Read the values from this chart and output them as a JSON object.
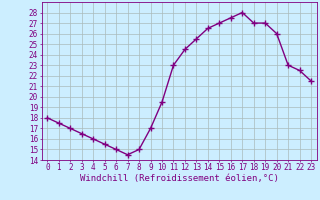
{
  "x": [
    0,
    1,
    2,
    3,
    4,
    5,
    6,
    7,
    8,
    9,
    10,
    11,
    12,
    13,
    14,
    15,
    16,
    17,
    18,
    19,
    20,
    21,
    22,
    23
  ],
  "y": [
    18.0,
    17.5,
    17.0,
    16.5,
    16.0,
    15.5,
    15.0,
    14.5,
    15.0,
    17.0,
    19.5,
    23.0,
    24.5,
    25.5,
    26.5,
    27.0,
    27.5,
    28.0,
    27.0,
    27.0,
    26.0,
    23.0,
    22.5,
    21.5
  ],
  "line_color": "#800080",
  "marker": "+",
  "marker_size": 4,
  "bg_color": "#cceeff",
  "grid_color": "#aabbbb",
  "xlabel": "Windchill (Refroidissement éolien,°C)",
  "ylabel": "",
  "ylim": [
    14,
    29
  ],
  "xlim_min": -0.5,
  "xlim_max": 23.5,
  "yticks": [
    14,
    15,
    16,
    17,
    18,
    19,
    20,
    21,
    22,
    23,
    24,
    25,
    26,
    27,
    28
  ],
  "xtick_labels": [
    "0",
    "1",
    "2",
    "3",
    "4",
    "5",
    "6",
    "7",
    "8",
    "9",
    "10",
    "11",
    "12",
    "13",
    "14",
    "15",
    "16",
    "17",
    "18",
    "19",
    "20",
    "21",
    "22",
    "23"
  ],
  "tick_fontsize": 5.5,
  "xlabel_fontsize": 6.5,
  "line_width": 1.0,
  "marker_edge_width": 1.0
}
